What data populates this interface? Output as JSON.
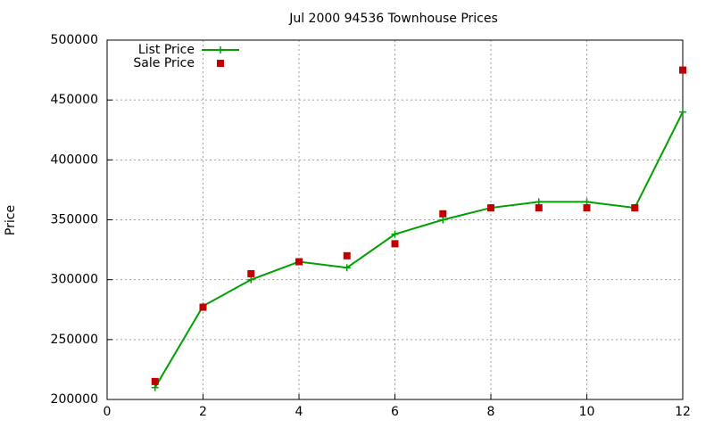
{
  "chart_data": {
    "type": "line",
    "title": "Jul 2000 94536 Townhouse Prices",
    "y_label": "Price",
    "x": [
      1,
      2,
      3,
      4,
      5,
      6,
      7,
      8,
      9,
      10,
      11,
      12
    ],
    "series": [
      {
        "name": "List Price",
        "color": "#00a000",
        "style": "linespoints",
        "values": [
          210000,
          278000,
          300000,
          315000,
          310000,
          338000,
          350000,
          360000,
          365000,
          365000,
          360000,
          440000
        ]
      },
      {
        "name": "Sale Price",
        "color": "#c00000",
        "style": "points",
        "values": [
          215000,
          277000,
          305000,
          315000,
          320000,
          330000,
          355000,
          360000,
          360000,
          360000,
          360000,
          475000
        ]
      }
    ],
    "xlim": [
      0,
      12
    ],
    "xticks": [
      0,
      2,
      4,
      6,
      8,
      10,
      12
    ],
    "ylim": [
      200000,
      500000
    ],
    "yticks": [
      200000,
      250000,
      300000,
      350000,
      400000,
      450000,
      500000
    ],
    "grid": true,
    "legend": "top-left"
  }
}
